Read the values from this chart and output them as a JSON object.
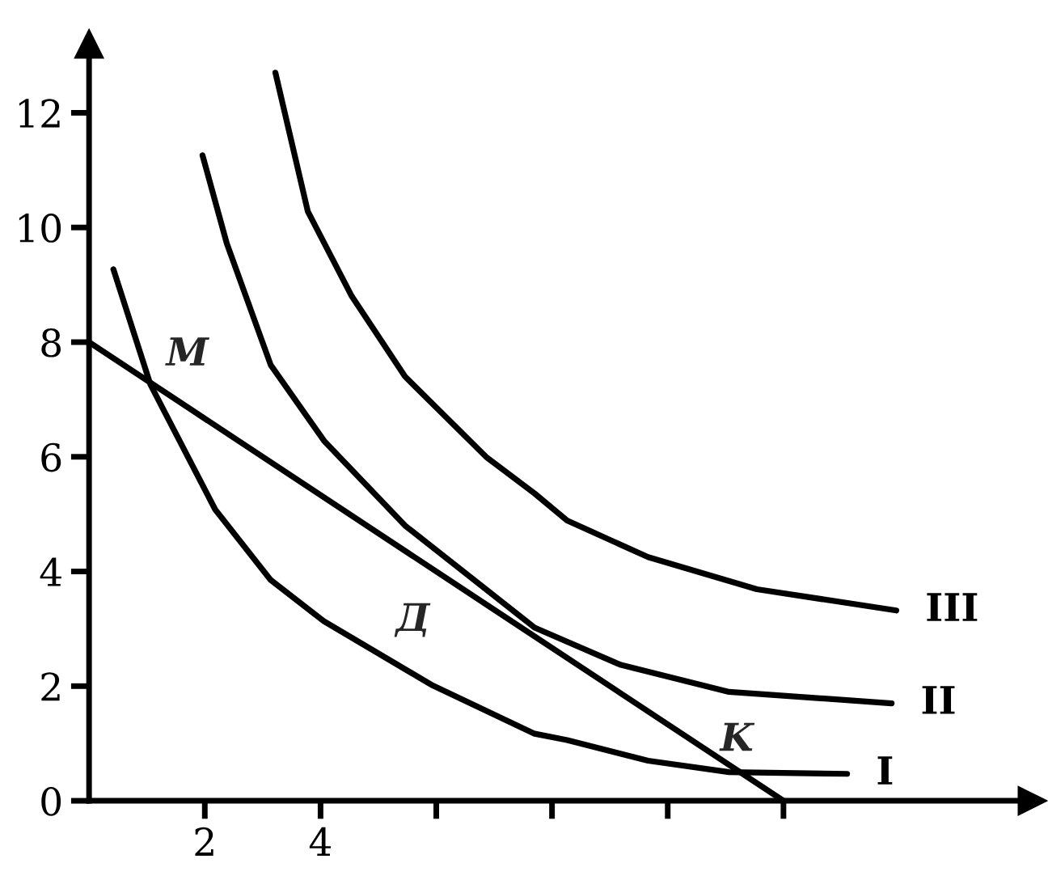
{
  "chart_data": {
    "type": "line",
    "xlim": [
      0,
      16.3
    ],
    "ylim": [
      0,
      13.2
    ],
    "xticks": [
      2,
      4,
      {
        "value": 6,
        "label": null
      },
      {
        "value": 8,
        "label": null
      },
      {
        "value": 10,
        "label": null
      },
      {
        "value": 12,
        "label": null
      }
    ],
    "yticks": [
      0,
      2,
      4,
      6,
      8,
      10,
      12
    ],
    "grid": false,
    "marker": "none",
    "line_style": "solid",
    "series": [
      {
        "color": "#000000",
        "x": [
          0,
          12
        ],
        "values": [
          8,
          0
        ]
      },
      {
        "name": "I",
        "color": "#000000",
        "x": [
          0.42,
          1.06,
          2.18,
          3.14,
          4.06,
          5.94,
          7.7,
          8.26,
          9.66,
          11.06,
          13.1
        ],
        "values": [
          9.27,
          7.26,
          5.08,
          3.85,
          3.13,
          2.01,
          1.17,
          1.06,
          0.7,
          0.5,
          0.47
        ]
      },
      {
        "name": "II",
        "color": "#000000",
        "x": [
          1.96,
          2.38,
          3.14,
          4.06,
          5.46,
          7.7,
          9.19,
          11.06,
          13.87
        ],
        "values": [
          11.26,
          9.72,
          7.6,
          6.28,
          4.8,
          3.02,
          2.37,
          1.9,
          1.7
        ]
      },
      {
        "name": "III",
        "color": "#000000",
        "x": [
          3.22,
          3.78,
          4.54,
          5.46,
          6.86,
          7.7,
          8.26,
          9.66,
          11.54,
          13.95
        ],
        "values": [
          12.7,
          10.28,
          8.8,
          7.4,
          6.0,
          5.36,
          4.89,
          4.25,
          3.69,
          3.32
        ]
      }
    ],
    "annotations": [
      {
        "text": "M",
        "x": 1.1,
        "y": 7.3
      },
      {
        "text": "Д",
        "x": 6.0,
        "y": 4.0
      },
      {
        "text": "K",
        "x": 11.1,
        "y": 0.5
      }
    ]
  }
}
